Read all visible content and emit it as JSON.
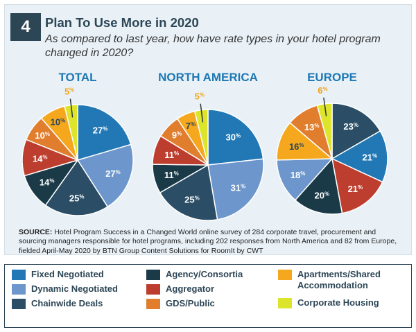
{
  "header": {
    "number": "4",
    "title": "Plan To Use More in 2020",
    "subtitle": "As compared to last year, how have rate types in your hotel program changed in 2020?"
  },
  "legend": {
    "items": [
      {
        "key": "fixed",
        "label": "Fixed Negotiated",
        "color": "#2278b5"
      },
      {
        "key": "dynamic",
        "label": "Dynamic Negotiated",
        "color": "#6d96cc"
      },
      {
        "key": "chainwide",
        "label": "Chainwide Deals",
        "color": "#2b4e66"
      },
      {
        "key": "agency",
        "label": "Agency/Consortia",
        "color": "#1a3a48"
      },
      {
        "key": "aggregator",
        "label": "Aggregator",
        "color": "#bd3e2e"
      },
      {
        "key": "gds",
        "label": "GDS/Public",
        "color": "#e07e2e"
      },
      {
        "key": "apartments",
        "label": "Apartments/Shared Accommodation",
        "color": "#f5a81d"
      },
      {
        "key": "corporate",
        "label": "Corporate Housing",
        "color": "#dce42b"
      }
    ]
  },
  "source": {
    "prefix": "SOURCE:",
    "text": "Hotel Program Success in a Changed World online survey of 284 corporate travel, procurement and sourcing managers responsible for hotel programs, including 202 responses from North America and 82 from Europe, fielded April-May 2020 by BTN Group Content Solutions for RoomIt by CWT"
  },
  "chart_data": [
    {
      "type": "pie",
      "title": "TOTAL",
      "unit": "%",
      "labels": [
        "Fixed Negotiated",
        "Dynamic Negotiated",
        "Chainwide Deals",
        "Agency/Consortia",
        "Aggregator",
        "GDS/Public",
        "Apartments/Shared Accommodation",
        "Corporate Housing"
      ],
      "values": [
        27,
        27,
        25,
        14,
        14,
        10,
        10,
        5
      ],
      "colors": [
        "#2278b5",
        "#6d96cc",
        "#2b4e66",
        "#1a3a48",
        "#bd3e2e",
        "#e07e2e",
        "#f5a81d",
        "#dce42b"
      ]
    },
    {
      "type": "pie",
      "title": "NORTH AMERICA",
      "unit": "%",
      "labels": [
        "Fixed Negotiated",
        "Dynamic Negotiated",
        "Chainwide Deals",
        "Agency/Consortia",
        "Aggregator",
        "GDS/Public",
        "Apartments/Shared Accommodation",
        "Corporate Housing"
      ],
      "values": [
        30,
        31,
        25,
        11,
        11,
        9,
        7,
        5
      ],
      "colors": [
        "#2278b5",
        "#6d96cc",
        "#2b4e66",
        "#1a3a48",
        "#bd3e2e",
        "#e07e2e",
        "#f5a81d",
        "#dce42b"
      ]
    },
    {
      "type": "pie",
      "title": "EUROPE",
      "unit": "%",
      "labels": [
        "Chainwide Deals",
        "Fixed Negotiated",
        "Aggregator",
        "Agency/Consortia",
        "Dynamic Negotiated",
        "Apartments/Shared Accommodation",
        "GDS/Public",
        "Corporate Housing"
      ],
      "values": [
        23,
        21,
        21,
        20,
        18,
        16,
        13,
        6
      ],
      "colors": [
        "#2b4e66",
        "#2278b5",
        "#bd3e2e",
        "#1a3a48",
        "#6d96cc",
        "#f5a81d",
        "#e07e2e",
        "#dce42b"
      ]
    }
  ]
}
